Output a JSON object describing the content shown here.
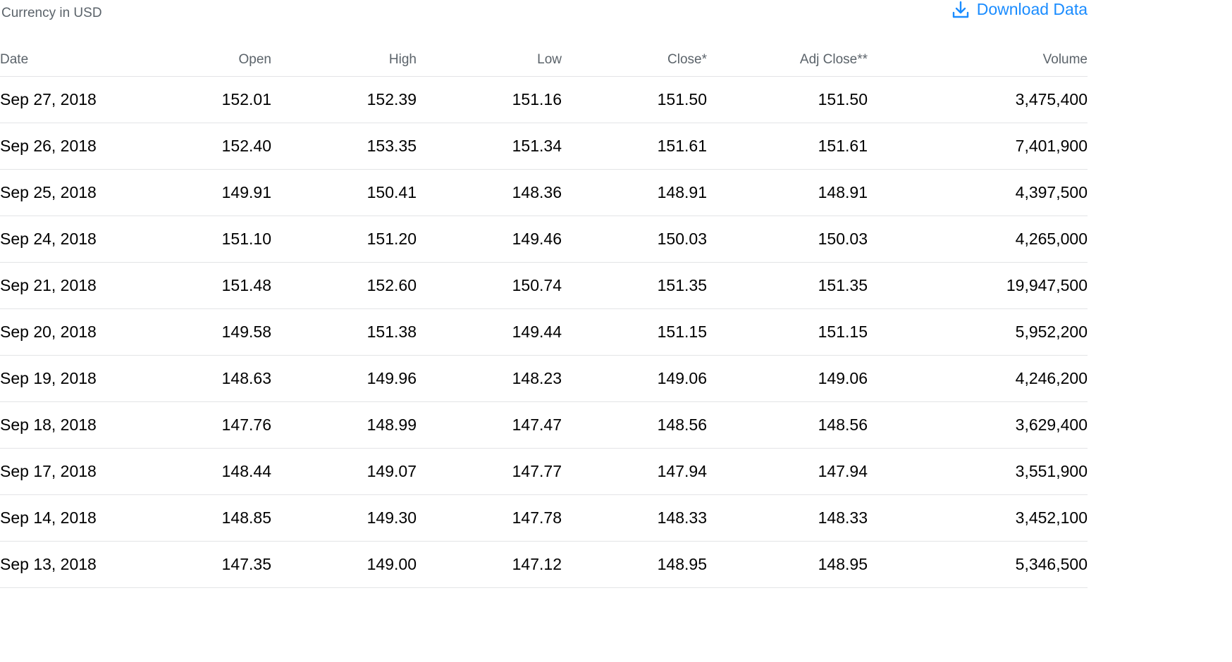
{
  "currency_label": "Currency in USD",
  "download": {
    "label": "Download Data",
    "icon": "download-icon",
    "color": "#1a8cff"
  },
  "columns": [
    "Date",
    "Open",
    "High",
    "Low",
    "Close*",
    "Adj Close**",
    "Volume"
  ],
  "rows": [
    [
      "Sep 27, 2018",
      "152.01",
      "152.39",
      "151.16",
      "151.50",
      "151.50",
      "3,475,400"
    ],
    [
      "Sep 26, 2018",
      "152.40",
      "153.35",
      "151.34",
      "151.61",
      "151.61",
      "7,401,900"
    ],
    [
      "Sep 25, 2018",
      "149.91",
      "150.41",
      "148.36",
      "148.91",
      "148.91",
      "4,397,500"
    ],
    [
      "Sep 24, 2018",
      "151.10",
      "151.20",
      "149.46",
      "150.03",
      "150.03",
      "4,265,000"
    ],
    [
      "Sep 21, 2018",
      "151.48",
      "152.60",
      "150.74",
      "151.35",
      "151.35",
      "19,947,500"
    ],
    [
      "Sep 20, 2018",
      "149.58",
      "151.38",
      "149.44",
      "151.15",
      "151.15",
      "5,952,200"
    ],
    [
      "Sep 19, 2018",
      "148.63",
      "149.96",
      "148.23",
      "149.06",
      "149.06",
      "4,246,200"
    ],
    [
      "Sep 18, 2018",
      "147.76",
      "148.99",
      "147.47",
      "148.56",
      "148.56",
      "3,629,400"
    ],
    [
      "Sep 17, 2018",
      "148.44",
      "149.07",
      "147.77",
      "147.94",
      "147.94",
      "3,551,900"
    ],
    [
      "Sep 14, 2018",
      "148.85",
      "149.30",
      "147.78",
      "148.33",
      "148.33",
      "3,452,100"
    ],
    [
      "Sep 13, 2018",
      "147.35",
      "149.00",
      "147.12",
      "148.95",
      "148.95",
      "5,346,500"
    ]
  ]
}
